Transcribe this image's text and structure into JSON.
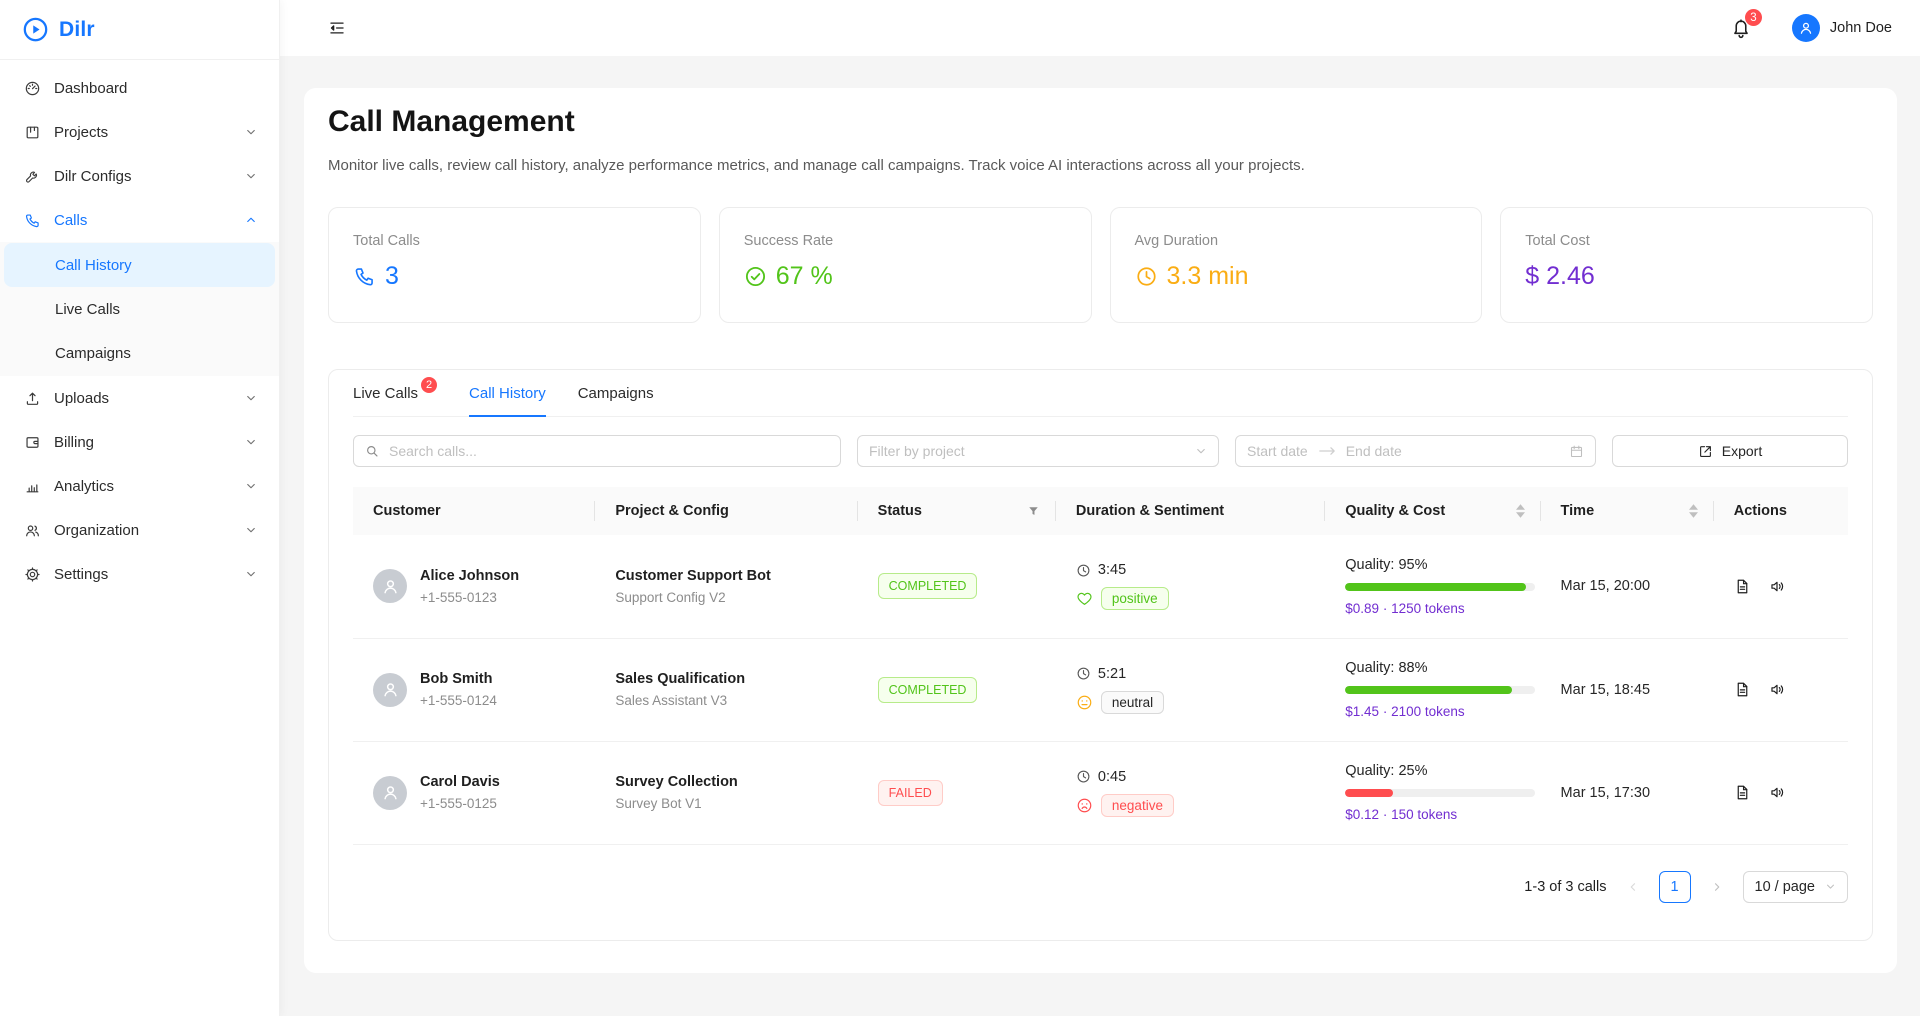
{
  "colors": {
    "primary": "#1677ff",
    "success": "#52c41a",
    "warning": "#faad14",
    "danger": "#ff4d4f",
    "purple": "#722ed1",
    "page_background": "#f5f5f5"
  },
  "icons": {
    "logo": "play-circle",
    "collapse": "menu-fold",
    "notifications": "bell",
    "user": "person",
    "search": "magnifier",
    "select_arrow": "chevron-down",
    "date_separator": "arrow-right",
    "calendar": "calendar",
    "export": "export-arrow",
    "status_filter": "funnel",
    "sort": "caret-up-down",
    "duration": "clock",
    "sentiment_positive": "heart",
    "sentiment_neutral": "meh-face",
    "sentiment_negative": "frown-face",
    "action_transcript": "file-text",
    "action_audio": "speaker"
  },
  "brand": {
    "name": "Dilr"
  },
  "topbar": {
    "notification_count": "3",
    "user_name": "John Doe"
  },
  "sidebar": {
    "items": [
      {
        "label": "Dashboard",
        "icon": "dashboard"
      },
      {
        "label": "Projects",
        "icon": "project-board",
        "expandable": true
      },
      {
        "label": "Dilr Configs",
        "icon": "wrench",
        "expandable": true
      },
      {
        "label": "Calls",
        "icon": "phone",
        "expandable": true,
        "expanded": true
      },
      {
        "label": "Uploads",
        "icon": "upload",
        "expandable": true
      },
      {
        "label": "Billing",
        "icon": "wallet",
        "expandable": true
      },
      {
        "label": "Analytics",
        "icon": "bar-chart",
        "expandable": true
      },
      {
        "label": "Organization",
        "icon": "team",
        "expandable": true
      },
      {
        "label": "Settings",
        "icon": "gear",
        "expandable": true
      }
    ],
    "calls_submenu": [
      {
        "label": "Call History",
        "active": true
      },
      {
        "label": "Live Calls"
      },
      {
        "label": "Campaigns"
      }
    ]
  },
  "page": {
    "title": "Call Management",
    "subtitle": "Monitor live calls, review call history, analyze performance metrics, and manage call campaigns. Track voice AI interactions across all your projects."
  },
  "stats": [
    {
      "label": "Total Calls",
      "value": "3",
      "icon": "phone",
      "color": "#1677ff"
    },
    {
      "label": "Success Rate",
      "value": "67 %",
      "icon": "check-circle",
      "color": "#52c41a"
    },
    {
      "label": "Avg Duration",
      "value": "3.3 min",
      "icon": "clock",
      "color": "#faad14"
    },
    {
      "label": "Total Cost",
      "value": "$ 2.46",
      "icon": null,
      "color": "#722ed1"
    }
  ],
  "tabs": [
    {
      "label": "Live Calls",
      "badge": "2"
    },
    {
      "label": "Call History",
      "active": true
    },
    {
      "label": "Campaigns"
    }
  ],
  "filters": {
    "search_placeholder": "Search calls...",
    "project_placeholder": "Filter by project",
    "start_date_placeholder": "Start date",
    "end_date_placeholder": "End date",
    "export_label": "Export"
  },
  "table": {
    "columns": [
      "Customer",
      "Project & Config",
      "Status",
      "Duration & Sentiment",
      "Quality & Cost",
      "Time",
      "Actions"
    ],
    "rows": [
      {
        "name": "Alice Johnson",
        "phone": "+1-555-0123",
        "project": "Customer Support Bot",
        "config": "Support Config V2",
        "status": "COMPLETED",
        "duration": "3:45",
        "sentiment": "positive",
        "quality_label": "Quality: 95%",
        "quality_pct": 95,
        "cost": "$0.89",
        "tokens": "1250 tokens",
        "time": "Mar 15, 20:00"
      },
      {
        "name": "Bob Smith",
        "phone": "+1-555-0124",
        "project": "Sales Qualification",
        "config": "Sales Assistant V3",
        "status": "COMPLETED",
        "duration": "5:21",
        "sentiment": "neutral",
        "quality_label": "Quality: 88%",
        "quality_pct": 88,
        "cost": "$1.45",
        "tokens": "2100 tokens",
        "time": "Mar 15, 18:45"
      },
      {
        "name": "Carol Davis",
        "phone": "+1-555-0125",
        "project": "Survey Collection",
        "config": "Survey Bot V1",
        "status": "FAILED",
        "duration": "0:45",
        "sentiment": "negative",
        "quality_label": "Quality: 25%",
        "quality_pct": 25,
        "cost": "$0.12",
        "tokens": "150 tokens",
        "time": "Mar 15, 17:30"
      }
    ]
  },
  "pagination": {
    "summary": "1-3 of 3 calls",
    "current_page": "1",
    "page_size": "10 / page"
  }
}
